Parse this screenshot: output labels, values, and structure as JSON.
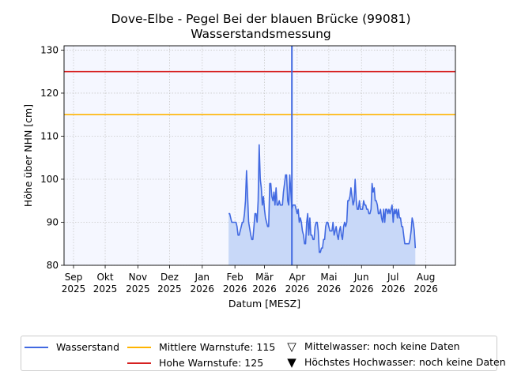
{
  "chart_data": {
    "type": "line",
    "title": "Dove-Elbe - Pegel Bei der blauen Brücke (99081)",
    "subtitle": "Wasserstandsmessung",
    "xlabel": "Datum [MESZ]",
    "ylabel": "Höhe über NHN [cm]",
    "ylim": [
      80,
      131
    ],
    "xlim": [
      "2025-08-23",
      "2026-08-29"
    ],
    "grid": true,
    "legend_position": "bottom",
    "yticks": [
      80,
      90,
      100,
      110,
      120,
      130
    ],
    "xticks": [
      {
        "date": "2025-09-01",
        "label": "Sep",
        "year": "2025"
      },
      {
        "date": "2025-10-01",
        "label": "Okt",
        "year": "2025"
      },
      {
        "date": "2025-11-01",
        "label": "Nov",
        "year": "2025"
      },
      {
        "date": "2025-12-01",
        "label": "Dez",
        "year": "2025"
      },
      {
        "date": "2026-01-01",
        "label": "Jan",
        "year": "2026"
      },
      {
        "date": "2026-02-01",
        "label": "Feb",
        "year": "2026"
      },
      {
        "date": "2026-03-01",
        "label": "Mär",
        "year": "2026"
      },
      {
        "date": "2026-04-01",
        "label": "Apr",
        "year": "2026"
      },
      {
        "date": "2026-05-01",
        "label": "Mai",
        "year": "2026"
      },
      {
        "date": "2026-06-01",
        "label": "Jun",
        "year": "2026"
      },
      {
        "date": "2026-07-01",
        "label": "Jul",
        "year": "2026"
      },
      {
        "date": "2026-08-01",
        "label": "Aug",
        "year": "2026"
      }
    ],
    "series": [
      {
        "name": "Wasserstand",
        "color": "#4169e1",
        "fill": "#c8d8f8",
        "points": [
          [
            "2026-01-26",
            92
          ],
          [
            "2026-01-27",
            92
          ],
          [
            "2026-01-28",
            91
          ],
          [
            "2026-01-29",
            90
          ],
          [
            "2026-01-31",
            90
          ],
          [
            "2026-02-02",
            90
          ],
          [
            "2026-02-03",
            89
          ],
          [
            "2026-02-04",
            87
          ],
          [
            "2026-02-05",
            87
          ],
          [
            "2026-02-06",
            88
          ],
          [
            "2026-02-08",
            90
          ],
          [
            "2026-02-09",
            90
          ],
          [
            "2026-02-10",
            92
          ],
          [
            "2026-02-11",
            95
          ],
          [
            "2026-02-12",
            102
          ],
          [
            "2026-02-13",
            96
          ],
          [
            "2026-02-14",
            90
          ],
          [
            "2026-02-16",
            87
          ],
          [
            "2026-02-17",
            86
          ],
          [
            "2026-02-18",
            86
          ],
          [
            "2026-02-19",
            89
          ],
          [
            "2026-02-20",
            92
          ],
          [
            "2026-02-21",
            92
          ],
          [
            "2026-02-22",
            90
          ],
          [
            "2026-02-23",
            95
          ],
          [
            "2026-02-24",
            108
          ],
          [
            "2026-02-25",
            100
          ],
          [
            "2026-02-26",
            98
          ],
          [
            "2026-02-27",
            94
          ],
          [
            "2026-02-28",
            96
          ],
          [
            "2026-03-01",
            93
          ],
          [
            "2026-03-02",
            91
          ],
          [
            "2026-03-03",
            90
          ],
          [
            "2026-03-04",
            89
          ],
          [
            "2026-03-05",
            89
          ],
          [
            "2026-03-06",
            99
          ],
          [
            "2026-03-07",
            99
          ],
          [
            "2026-03-08",
            96
          ],
          [
            "2026-03-09",
            95
          ],
          [
            "2026-03-10",
            97
          ],
          [
            "2026-03-11",
            94
          ],
          [
            "2026-03-12",
            98
          ],
          [
            "2026-03-13",
            94
          ],
          [
            "2026-03-14",
            94
          ],
          [
            "2026-03-15",
            95
          ],
          [
            "2026-03-16",
            94
          ],
          [
            "2026-03-17",
            94
          ],
          [
            "2026-03-18",
            94
          ],
          [
            "2026-03-19",
            97
          ],
          [
            "2026-03-20",
            99
          ],
          [
            "2026-03-21",
            101
          ],
          [
            "2026-03-22",
            101
          ],
          [
            "2026-03-23",
            95
          ],
          [
            "2026-03-24",
            94
          ],
          [
            "2026-03-25",
            101
          ],
          [
            "2026-03-26",
            97
          ],
          [
            "2026-03-27",
            93
          ],
          [
            "2026-03-28",
            94
          ],
          [
            "2026-03-29",
            94
          ],
          [
            "2026-03-30",
            94
          ],
          [
            "2026-03-31",
            93
          ],
          [
            "2026-04-01",
            92
          ],
          [
            "2026-04-02",
            93
          ],
          [
            "2026-04-03",
            90
          ],
          [
            "2026-04-04",
            91
          ],
          [
            "2026-04-05",
            90
          ],
          [
            "2026-04-06",
            88
          ],
          [
            "2026-04-07",
            87
          ],
          [
            "2026-04-08",
            85
          ],
          [
            "2026-04-09",
            85
          ],
          [
            "2026-04-10",
            90
          ],
          [
            "2026-04-11",
            92
          ],
          [
            "2026-04-12",
            87
          ],
          [
            "2026-04-13",
            91
          ],
          [
            "2026-04-14",
            87
          ],
          [
            "2026-04-15",
            87
          ],
          [
            "2026-04-16",
            86
          ],
          [
            "2026-04-17",
            86
          ],
          [
            "2026-04-18",
            89
          ],
          [
            "2026-04-19",
            90
          ],
          [
            "2026-04-20",
            90
          ],
          [
            "2026-04-21",
            88
          ],
          [
            "2026-04-22",
            83
          ],
          [
            "2026-04-23",
            83
          ],
          [
            "2026-04-24",
            84
          ],
          [
            "2026-04-25",
            84
          ],
          [
            "2026-04-26",
            86
          ],
          [
            "2026-04-27",
            86
          ],
          [
            "2026-04-28",
            89
          ],
          [
            "2026-04-29",
            90
          ],
          [
            "2026-04-30",
            90
          ],
          [
            "2026-05-01",
            89
          ],
          [
            "2026-05-02",
            88
          ],
          [
            "2026-05-03",
            88
          ],
          [
            "2026-05-04",
            88
          ],
          [
            "2026-05-05",
            90
          ],
          [
            "2026-05-06",
            87
          ],
          [
            "2026-05-07",
            88
          ],
          [
            "2026-05-08",
            89
          ],
          [
            "2026-05-09",
            87
          ],
          [
            "2026-05-10",
            86
          ],
          [
            "2026-05-11",
            88
          ],
          [
            "2026-05-12",
            89
          ],
          [
            "2026-05-13",
            87
          ],
          [
            "2026-05-14",
            86
          ],
          [
            "2026-05-15",
            89
          ],
          [
            "2026-05-16",
            90
          ],
          [
            "2026-05-17",
            89
          ],
          [
            "2026-05-18",
            90
          ],
          [
            "2026-05-19",
            95
          ],
          [
            "2026-05-20",
            95
          ],
          [
            "2026-05-21",
            96
          ],
          [
            "2026-05-22",
            98
          ],
          [
            "2026-05-23",
            96
          ],
          [
            "2026-05-24",
            94
          ],
          [
            "2026-05-25",
            95
          ],
          [
            "2026-05-26",
            100
          ],
          [
            "2026-05-27",
            95
          ],
          [
            "2026-05-28",
            93
          ],
          [
            "2026-05-29",
            93
          ],
          [
            "2026-05-30",
            95
          ],
          [
            "2026-05-31",
            93
          ],
          [
            "2026-06-01",
            93
          ],
          [
            "2026-06-02",
            93
          ],
          [
            "2026-06-03",
            95
          ],
          [
            "2026-06-04",
            94
          ],
          [
            "2026-06-05",
            94
          ],
          [
            "2026-06-06",
            93
          ],
          [
            "2026-06-07",
            93
          ],
          [
            "2026-06-08",
            92
          ],
          [
            "2026-06-09",
            92
          ],
          [
            "2026-06-10",
            93
          ],
          [
            "2026-06-11",
            99
          ],
          [
            "2026-06-12",
            97
          ],
          [
            "2026-06-13",
            98
          ],
          [
            "2026-06-14",
            95
          ],
          [
            "2026-06-15",
            95
          ],
          [
            "2026-06-16",
            94
          ],
          [
            "2026-06-17",
            92
          ],
          [
            "2026-06-18",
            92
          ],
          [
            "2026-06-19",
            93
          ],
          [
            "2026-06-20",
            91
          ],
          [
            "2026-06-21",
            90
          ],
          [
            "2026-06-22",
            93
          ],
          [
            "2026-06-23",
            90
          ],
          [
            "2026-06-24",
            93
          ],
          [
            "2026-06-25",
            93
          ],
          [
            "2026-06-26",
            92
          ],
          [
            "2026-06-27",
            93
          ],
          [
            "2026-06-28",
            92
          ],
          [
            "2026-06-29",
            93
          ],
          [
            "2026-06-30",
            94
          ],
          [
            "2026-07-01",
            90
          ],
          [
            "2026-07-02",
            93
          ],
          [
            "2026-07-03",
            92
          ],
          [
            "2026-07-04",
            93
          ],
          [
            "2026-07-05",
            91
          ],
          [
            "2026-07-06",
            93
          ],
          [
            "2026-07-07",
            91
          ],
          [
            "2026-07-08",
            91
          ],
          [
            "2026-07-09",
            89
          ],
          [
            "2026-07-10",
            89
          ],
          [
            "2026-07-11",
            87
          ],
          [
            "2026-07-12",
            85
          ],
          [
            "2026-07-14",
            85
          ],
          [
            "2026-07-16",
            85
          ],
          [
            "2026-07-17",
            86
          ],
          [
            "2026-07-18",
            88
          ],
          [
            "2026-07-19",
            91
          ],
          [
            "2026-07-20",
            90
          ],
          [
            "2026-07-21",
            88
          ],
          [
            "2026-07-22",
            84
          ]
        ]
      },
      {
        "name": "Mittlere Warnstufe: 115",
        "color": "#ffb400",
        "value": 115
      },
      {
        "name": "Hohe Warnstufe: 125",
        "color": "#d62020",
        "value": 125
      }
    ],
    "vertical_marker": {
      "date": "2026-03-27",
      "color": "#4169e1"
    },
    "legend": [
      {
        "label": "Wasserstand",
        "kind": "line",
        "color": "#4169e1"
      },
      {
        "label": "Mittlere Warnstufe: 115",
        "kind": "line",
        "color": "#ffb400"
      },
      {
        "label": "Hohe Warnstufe: 125",
        "kind": "line",
        "color": "#d62020"
      },
      {
        "label": "Mittelwasser: noch keine Daten",
        "kind": "marker",
        "marker": "triangle-down-open"
      },
      {
        "label": "Höchstes Hochwasser: noch keine Daten",
        "kind": "marker",
        "marker": "triangle-down-filled"
      }
    ]
  },
  "title": "Dove-Elbe - Pegel Bei der blauen Brücke (99081)",
  "subtitle": "Wasserstandsmessung",
  "legend": {
    "wasserstand": "Wasserstand",
    "mittlere": "Mittlere Warnstufe: 115",
    "hohe": "Hohe Warnstufe: 125",
    "mittelwasser": "Mittelwasser: noch keine Daten",
    "hochwasser": "Höchstes Hochwasser: noch keine Daten"
  },
  "icons": {
    "mittelwasser_marker": "▽",
    "hochwasser_marker": "▼"
  }
}
